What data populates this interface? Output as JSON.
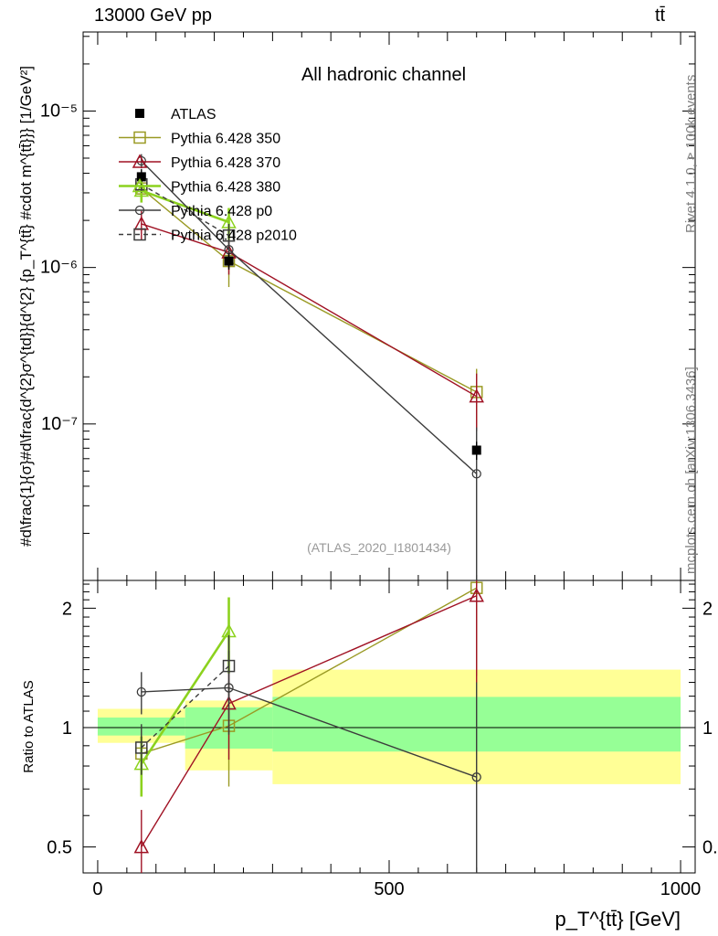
{
  "header": {
    "energy_label": "13000 GeV pp",
    "process_label": "tt̄"
  },
  "side_texts": {
    "rivet": "Rivet 4.1.0, ≥ 100k events",
    "mcplots": "mcplots.cern.ch [arXiv:1306.3436]"
  },
  "chart_data": [
    {
      "type": "scatter",
      "panel": "main",
      "title": "All hadronic channel",
      "watermark": "(ATLAS_2020_I1801434)",
      "yscale": "log",
      "xlim": [
        -25,
        1025
      ],
      "ylim": [
        1e-08,
        3.2e-05
      ],
      "ylabel": "#d\\frac{1}{σ}#d\\frac{d^{2}σ^{td}}{d^{2} {p_T^{tt̄} #cdot m^{tt̄}}} [1/GeV²]",
      "y_tick_labels": [
        "10⁻⁷",
        "10⁻⁶",
        "10⁻⁵"
      ],
      "y_tick_values": [
        1e-07,
        1e-06,
        1e-05
      ],
      "x_bins_reference": [
        [
          0,
          150
        ],
        [
          150,
          300
        ],
        [
          300,
          1000
        ]
      ],
      "series": [
        {
          "name": "ATLAS",
          "color": "#000000",
          "marker": "square-filled",
          "line": "none",
          "x": [
            75,
            225,
            650
          ],
          "y": [
            3.8e-06,
            1.1e-06,
            6.8e-08
          ],
          "err": [
            4.5e-07,
            1.3e-07,
            9e-09
          ]
        },
        {
          "name": "Pythia 6.428 350",
          "color": "#9a9a24",
          "marker": "square-open",
          "line": "solid",
          "x": [
            75,
            225,
            650
          ],
          "y": [
            3.2e-06,
            1.1e-06,
            1.6e-07
          ],
          "err": [
            5e-07,
            3.5e-07,
            6.5e-08
          ]
        },
        {
          "name": "Pythia 6.428 370",
          "color": "#a01224",
          "marker": "triangle-open",
          "line": "solid",
          "x": [
            75,
            225,
            650
          ],
          "y": [
            1.9e-06,
            1.25e-06,
            1.5e-07
          ],
          "err": [
            4e-07,
            3.5e-07,
            6e-08
          ]
        },
        {
          "name": "Pythia 6.428 380",
          "color": "#8cd21e",
          "marker": "triangle-open",
          "line": "solid",
          "x": [
            75,
            225
          ],
          "y": [
            3.1e-06,
            1.95e-06
          ],
          "err": [
            5e-07,
            4.5e-07
          ]
        },
        {
          "name": "Pythia 6.428 p0",
          "color": "#3c3c3c",
          "marker": "circle-open",
          "line": "solid",
          "x": [
            75,
            225,
            650
          ],
          "y": [
            4.8e-06,
            1.3e-06,
            4.8e-08
          ],
          "err": [
            5e-07,
            3e-07,
            4.7e-08
          ]
        },
        {
          "name": "Pythia 6.428 p2010",
          "color": "#3c3c3c",
          "marker": "square-open",
          "line": "dashed",
          "x": [
            75,
            225
          ],
          "y": [
            3.4e-06,
            1.6e-06
          ],
          "err": [
            4e-07,
            3e-07
          ]
        }
      ]
    },
    {
      "type": "scatter",
      "panel": "ratio",
      "yscale": "log",
      "xlim": [
        -25,
        1025
      ],
      "ylim": [
        0.43,
        2.35
      ],
      "xlabel": "p_T^{tt̄} [GeV]",
      "ylabel": "Ratio to ATLAS",
      "x_tick_labels": [
        "0",
        "500",
        "1000"
      ],
      "x_tick_values": [
        0,
        500,
        1000
      ],
      "y_tick_labels": [
        "0.5",
        "1",
        "2"
      ],
      "y_tick_values": [
        0.5,
        1,
        2
      ],
      "bands": [
        {
          "name": "yellow",
          "color": "#ffff96",
          "bins": [
            [
              0,
              150,
              0.915,
              1.115
            ],
            [
              150,
              300,
              0.78,
              1.17
            ],
            [
              300,
              1000,
              0.72,
              1.4
            ]
          ]
        },
        {
          "name": "green",
          "color": "#96ff96",
          "bins": [
            [
              0,
              150,
              0.955,
              1.06
            ],
            [
              150,
              300,
              0.885,
              1.125
            ],
            [
              300,
              1000,
              0.87,
              1.195
            ]
          ]
        }
      ],
      "series": [
        {
          "name": "Pythia 6.428 350",
          "color": "#9a9a24",
          "marker": "square-open",
          "line": "solid",
          "x": [
            75,
            225,
            650
          ],
          "y": [
            0.86,
            1.01,
            2.25
          ],
          "err": [
            0.13,
            0.3,
            0.9
          ]
        },
        {
          "name": "Pythia 6.428 370",
          "color": "#a01224",
          "marker": "triangle-open",
          "line": "solid",
          "x": [
            75,
            225,
            650
          ],
          "y": [
            0.5,
            1.15,
            2.15
          ],
          "err": [
            0.12,
            0.32,
            0.85
          ]
        },
        {
          "name": "Pythia 6.428 380",
          "color": "#8cd21e",
          "marker": "triangle-open",
          "line": "solid",
          "x": [
            75,
            225
          ],
          "y": [
            0.81,
            1.75
          ],
          "err": [
            0.14,
            0.38
          ]
        },
        {
          "name": "Pythia 6.428 p0",
          "color": "#3c3c3c",
          "marker": "circle-open",
          "line": "solid",
          "x": [
            75,
            225,
            650
          ],
          "y": [
            1.23,
            1.26,
            0.75
          ],
          "err": [
            0.15,
            0.3,
            0.55
          ]
        },
        {
          "name": "Pythia 6.428 p2010",
          "color": "#3c3c3c",
          "marker": "square-open",
          "line": "dashed",
          "x": [
            75,
            225
          ],
          "y": [
            0.89,
            1.43
          ],
          "err": [
            0.13,
            0.28
          ]
        }
      ]
    }
  ]
}
